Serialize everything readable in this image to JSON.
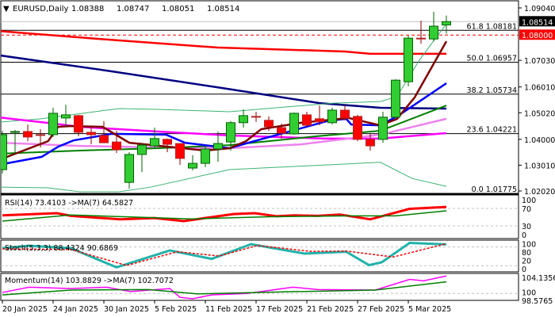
{
  "header": {
    "arrow": "▼",
    "symbol": "EURUSD,Daily",
    "open": "1.08388",
    "high": "1.08747",
    "low": "1.08051",
    "close": "1.08514"
  },
  "chart_data": {
    "type": "candlestick",
    "title": "EURUSD,Daily",
    "price_axis": {
      "range": [
        1.0202,
        1.0904
      ],
      "ticks": [
        "1.09040",
        "1.07030",
        "1.06010",
        "1.05020",
        "1.04000",
        "1.03010",
        "1.02020"
      ]
    },
    "current_price": {
      "label": "1.08514",
      "value": 1.08514,
      "color": "#000000"
    },
    "alert_level": {
      "label": "1.08000",
      "value": 1.08,
      "color": "#ff0000"
    },
    "fib_levels": [
      {
        "label": "61.8 1.08181",
        "value": 1.08181
      },
      {
        "label": "50.0 1.06957",
        "value": 1.06957
      },
      {
        "label": "38.2 1.05734",
        "value": 1.05734
      },
      {
        "label": "23.6 1.04221",
        "value": 1.04221
      },
      {
        "label": "0.0 1.01775",
        "value": 1.01775
      }
    ],
    "date_labels": [
      {
        "index": 0,
        "label": "20 Jan 2025"
      },
      {
        "index": 4,
        "label": "24 Jan 2025"
      },
      {
        "index": 8,
        "label": "30 Jan 2025"
      },
      {
        "index": 12,
        "label": "5 Feb 2025"
      },
      {
        "index": 16,
        "label": "11 Feb 2025"
      },
      {
        "index": 20,
        "label": "17 Feb 2025"
      },
      {
        "index": 24,
        "label": "21 Feb 2025"
      },
      {
        "index": 28,
        "label": "27 Feb 2025"
      },
      {
        "index": 32,
        "label": "5 Mar 2025"
      }
    ],
    "ohlc": [
      [
        1.0284,
        1.0433,
        1.0269,
        1.0418
      ],
      [
        1.0427,
        1.0436,
        1.0342,
        1.043
      ],
      [
        1.043,
        1.0457,
        1.0393,
        1.0409
      ],
      [
        1.0418,
        1.0439,
        1.0369,
        1.0415
      ],
      [
        1.0418,
        1.0521,
        1.0409,
        1.05
      ],
      [
        1.0482,
        1.0533,
        1.0448,
        1.0494
      ],
      [
        1.0491,
        1.0494,
        1.0412,
        1.0427
      ],
      [
        1.0427,
        1.0448,
        1.0381,
        1.0418
      ],
      [
        1.0415,
        1.047,
        1.0387,
        1.0387
      ],
      [
        1.039,
        1.0433,
        1.0348,
        1.036
      ],
      [
        1.0235,
        1.0351,
        1.0211,
        1.0342
      ],
      [
        1.0342,
        1.0387,
        1.0275,
        1.0378
      ],
      [
        1.0375,
        1.0445,
        1.0369,
        1.0403
      ],
      [
        1.04,
        1.0403,
        1.0351,
        1.0381
      ],
      [
        1.0384,
        1.0384,
        1.0302,
        1.0327
      ],
      [
        1.029,
        1.0339,
        1.0281,
        1.0308
      ],
      [
        1.0308,
        1.0372,
        1.0293,
        1.0363
      ],
      [
        1.0363,
        1.043,
        1.0314,
        1.0384
      ],
      [
        1.039,
        1.047,
        1.0357,
        1.0464
      ],
      [
        1.0464,
        1.0515,
        1.0445,
        1.0491
      ],
      [
        1.0488,
        1.0506,
        1.0467,
        1.0485
      ],
      [
        1.0473,
        1.0488,
        1.0433,
        1.0448
      ],
      [
        1.0445,
        1.046,
        1.0403,
        1.0424
      ],
      [
        1.0421,
        1.0503,
        1.0418,
        1.05
      ],
      [
        1.0494,
        1.0506,
        1.0448,
        1.0454
      ],
      [
        1.0479,
        1.053,
        1.0454,
        1.0467
      ],
      [
        1.0464,
        1.0521,
        1.0457,
        1.0512
      ],
      [
        1.0512,
        1.053,
        1.0473,
        1.0482
      ],
      [
        1.0488,
        1.0494,
        1.0393,
        1.04
      ],
      [
        1.04,
        1.0421,
        1.0357,
        1.0375
      ],
      [
        1.04,
        1.0506,
        1.0387,
        1.0485
      ],
      [
        1.0485,
        1.063,
        1.0479,
        1.0627
      ],
      [
        1.0621,
        1.0798,
        1.0603,
        1.0788
      ],
      [
        1.0788,
        1.0855,
        1.0767,
        1.0785
      ],
      [
        1.0785,
        1.0889,
        1.0776,
        1.0834
      ],
      [
        1.08388,
        1.08747,
        1.08051,
        1.08514
      ]
    ],
    "overlays": [
      {
        "name": "ma-red",
        "color": "#ff0000",
        "width": 2.5,
        "points": [
          [
            -0.2,
            1.0815
          ],
          [
            9,
            1.078
          ],
          [
            17,
            1.0752
          ],
          [
            27,
            1.0737
          ],
          [
            29,
            1.0728
          ],
          [
            35,
            1.0728
          ]
        ]
      },
      {
        "name": "ma-navy",
        "color": "#000080",
        "width": 2.5,
        "points": [
          [
            -0.2,
            1.0722
          ],
          [
            8.6,
            1.0661
          ],
          [
            17.3,
            1.0597
          ],
          [
            25,
            1.0539
          ],
          [
            29.8,
            1.0521
          ],
          [
            35,
            1.0518
          ]
        ]
      },
      {
        "name": "bb-upper",
        "color": "#3cb371",
        "width": 1,
        "points": [
          [
            -0.2,
            1.0466
          ],
          [
            2.9,
            1.0478
          ],
          [
            9.2,
            1.0518
          ],
          [
            12.3,
            1.0515
          ],
          [
            17.9,
            1.0506
          ],
          [
            22.3,
            1.0524
          ],
          [
            26.1,
            1.0539
          ],
          [
            29.8,
            1.0545
          ],
          [
            31.1,
            1.0564
          ],
          [
            32.9,
            1.0706
          ],
          [
            35,
            1.0843
          ]
        ]
      },
      {
        "name": "bb-lower",
        "color": "#3cb371",
        "width": 1,
        "points": [
          [
            -0.2,
            1.0217
          ],
          [
            3.6,
            1.0214
          ],
          [
            6.1,
            1.0199
          ],
          [
            9.2,
            1.0199
          ],
          [
            11.7,
            1.0217
          ],
          [
            17.9,
            1.0284
          ],
          [
            29.8,
            1.0312
          ],
          [
            32.3,
            1.025
          ],
          [
            35,
            1.022
          ]
        ]
      },
      {
        "name": "ma-magenta",
        "color": "#ff00ff",
        "width": 2.5,
        "points": [
          [
            -0.2,
            1.0484
          ],
          [
            3.6,
            1.0463
          ],
          [
            6.1,
            1.0448
          ],
          [
            12.3,
            1.043
          ],
          [
            17.9,
            1.0415
          ],
          [
            25.4,
            1.0403
          ],
          [
            29.8,
            1.0403
          ],
          [
            35,
            1.0424
          ]
        ]
      },
      {
        "name": "ma-violet",
        "color": "#ee82ee",
        "width": 2.5,
        "points": [
          [
            -0.2,
            1.0387
          ],
          [
            6.1,
            1.0375
          ],
          [
            12.3,
            1.0369
          ],
          [
            17.9,
            1.0366
          ],
          [
            23.6,
            1.0381
          ],
          [
            29.8,
            1.0418
          ],
          [
            35,
            1.0479
          ]
        ]
      },
      {
        "name": "ma-green",
        "color": "#008000",
        "width": 2,
        "points": [
          [
            -0.2,
            1.0345
          ],
          [
            6.1,
            1.0357
          ],
          [
            12.3,
            1.0366
          ],
          [
            17.9,
            1.0378
          ],
          [
            24.8,
            1.0412
          ],
          [
            29.8,
            1.0433
          ],
          [
            35,
            1.053
          ]
        ]
      },
      {
        "name": "ma-blue",
        "color": "#0000ff",
        "width": 2.5,
        "points": [
          [
            0,
            1.0305
          ],
          [
            3.1,
            1.0333
          ],
          [
            4.4,
            1.0372
          ],
          [
            5.6,
            1.0396
          ],
          [
            8.6,
            1.0421
          ],
          [
            12.9,
            1.0418
          ],
          [
            14.4,
            1.0387
          ],
          [
            17.9,
            1.0366
          ],
          [
            19.4,
            1.0387
          ],
          [
            25.6,
            1.047
          ],
          [
            27.1,
            1.0479
          ],
          [
            27.5,
            1.0457
          ],
          [
            29.8,
            1.0454
          ],
          [
            31.3,
            1.0494
          ],
          [
            35,
            1.0615
          ]
        ]
      },
      {
        "name": "ma-maroon",
        "color": "#800000",
        "width": 2.5,
        "points": [
          [
            0,
            1.0326
          ],
          [
            3.6,
            1.0393
          ],
          [
            4.4,
            1.0448
          ],
          [
            5.4,
            1.0451
          ],
          [
            7.9,
            1.0448
          ],
          [
            10,
            1.0387
          ],
          [
            13.6,
            1.0369
          ],
          [
            16,
            1.0357
          ],
          [
            17.9,
            1.0366
          ],
          [
            19.2,
            1.0393
          ],
          [
            20.4,
            1.0439
          ],
          [
            23.6,
            1.0464
          ],
          [
            27.3,
            1.0482
          ],
          [
            28.9,
            1.0464
          ],
          [
            29.8,
            1.0454
          ],
          [
            31.1,
            1.0478
          ],
          [
            32.5,
            1.0561
          ],
          [
            35,
            1.0776
          ]
        ]
      }
    ],
    "rsi": {
      "label": "RSI(14) 73.4103  ->MA(7) 64.5827",
      "range": [
        0,
        100
      ],
      "levels": [
        70,
        30
      ],
      "ticks": [
        "100",
        "70",
        "30",
        "0"
      ],
      "series": [
        {
          "name": "rsi",
          "color": "#ff0000",
          "width": 3,
          "points": [
            [
              0,
              54
            ],
            [
              4.3,
              59
            ],
            [
              5.4,
              53
            ],
            [
              9.3,
              45
            ],
            [
              12,
              48
            ],
            [
              14.3,
              41
            ],
            [
              18.2,
              57
            ],
            [
              19.9,
              59
            ],
            [
              21.6,
              52
            ],
            [
              23,
              54
            ],
            [
              24.9,
              53
            ],
            [
              26.6,
              56
            ],
            [
              29,
              45
            ],
            [
              32.1,
              69
            ],
            [
              35,
              73.4
            ]
          ]
        },
        {
          "name": "rsi-ma",
          "color": "#008000",
          "width": 1.5,
          "points": [
            [
              0,
              41
            ],
            [
              5.4,
              55
            ],
            [
              14.9,
              46
            ],
            [
              21,
              51
            ],
            [
              27.5,
              53
            ],
            [
              31,
              53
            ],
            [
              35,
              64.6
            ]
          ]
        }
      ]
    },
    "stoch": {
      "label": "Stoch(5,3,3) 88.4324 90.6869",
      "range": [
        0,
        100
      ],
      "levels": [
        80,
        20
      ],
      "ticks": [
        "100",
        "80",
        "20",
        "0"
      ],
      "series": [
        {
          "name": "stoch-main",
          "color": "#20b2aa",
          "width": 3,
          "dash": "",
          "points": [
            [
              0,
              76
            ],
            [
              2.1,
              84
            ],
            [
              5.4,
              76
            ],
            [
              9,
              15
            ],
            [
              13.2,
              69
            ],
            [
              16.5,
              42
            ],
            [
              19.6,
              89
            ],
            [
              23.8,
              59
            ],
            [
              27.1,
              65
            ],
            [
              28.9,
              22
            ],
            [
              29.9,
              31
            ],
            [
              32.1,
              93
            ],
            [
              35,
              88.4
            ]
          ]
        },
        {
          "name": "stoch-signal",
          "color": "#ff0000",
          "width": 1.5,
          "dash": "3,2",
          "points": [
            [
              0,
              74
            ],
            [
              5.4,
              72
            ],
            [
              9.8,
              21
            ],
            [
              13.8,
              65
            ],
            [
              17.1,
              51
            ],
            [
              20.1,
              85
            ],
            [
              24.3,
              66
            ],
            [
              27.1,
              67
            ],
            [
              30.8,
              48
            ],
            [
              35,
              90.7
            ]
          ]
        }
      ]
    },
    "momentum": {
      "label": "Momentum(14) 103.8829  ->MA(7) 102.7072",
      "range": [
        98.5765,
        104.1356
      ],
      "levels": [
        100
      ],
      "ticks": [
        "104.1356",
        "100",
        "98.5765"
      ],
      "series": [
        {
          "name": "momentum",
          "color": "#ff00ff",
          "width": 1.5,
          "points": [
            [
              0,
              100.2
            ],
            [
              2.1,
              101.3
            ],
            [
              5.4,
              101.0
            ],
            [
              8.2,
              101.3
            ],
            [
              10.1,
              100.4
            ],
            [
              13.2,
              101.0
            ],
            [
              14,
              99.2
            ],
            [
              15,
              98.9
            ],
            [
              16.5,
              99.7
            ],
            [
              19.3,
              100.0
            ],
            [
              20.4,
              100.4
            ],
            [
              22.9,
              101.3
            ],
            [
              24.9,
              100.8
            ],
            [
              29.4,
              100.7
            ],
            [
              32.1,
              102.9
            ],
            [
              33.2,
              102.6
            ],
            [
              35,
              103.6
            ]
          ]
        },
        {
          "name": "momentum-ma",
          "color": "#008000",
          "width": 1.5,
          "points": [
            [
              0,
              99.7
            ],
            [
              5.4,
              100.7
            ],
            [
              11.5,
              100.8
            ],
            [
              15.4,
              99.9
            ],
            [
              21.6,
              100.3
            ],
            [
              29.4,
              100.7
            ],
            [
              35,
              102.4
            ]
          ]
        }
      ]
    }
  }
}
